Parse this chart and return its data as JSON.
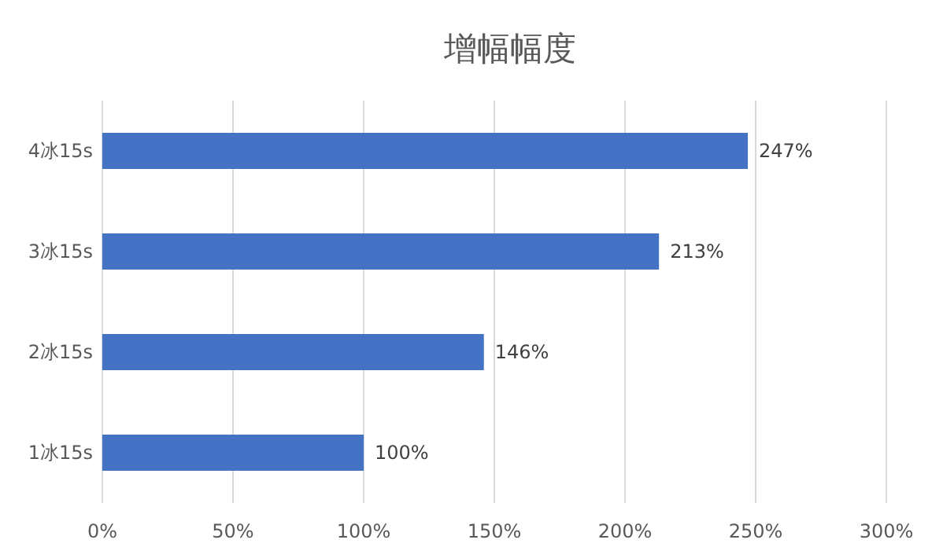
{
  "chart_data": {
    "type": "bar",
    "orientation": "horizontal",
    "title": "增幅幅度",
    "categories": [
      "4冰15s",
      "3冰15s",
      "2冰15s",
      "1冰15s"
    ],
    "values": [
      247,
      213,
      146,
      100
    ],
    "value_labels": [
      "247%",
      "213%",
      "146%",
      "100%"
    ],
    "color": "#4472c4",
    "xlim": [
      0,
      300
    ],
    "xticks": [
      {
        "value": 0,
        "label": "0%"
      },
      {
        "value": 50,
        "label": "50%"
      },
      {
        "value": 100,
        "label": "100%"
      },
      {
        "value": 150,
        "label": "150%"
      },
      {
        "value": 200,
        "label": "200%"
      },
      {
        "value": 250,
        "label": "250%"
      },
      {
        "value": 300,
        "label": "300%"
      }
    ],
    "grid": "x"
  }
}
